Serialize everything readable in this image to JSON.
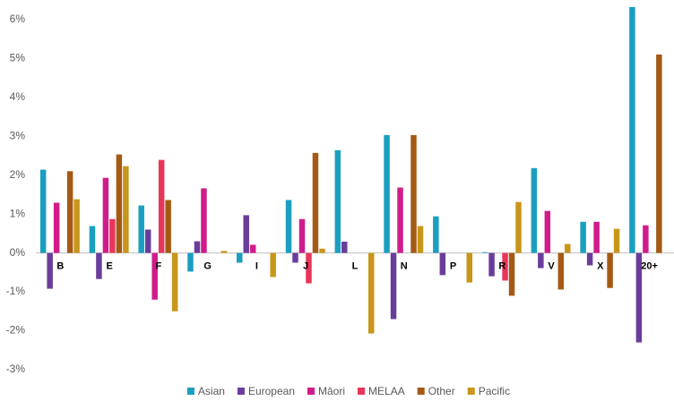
{
  "chart_data": {
    "type": "bar",
    "categories": [
      "B",
      "E",
      "F",
      "G",
      "I",
      "J",
      "L",
      "N",
      "P",
      "R",
      "V",
      "X",
      "20+"
    ],
    "series": [
      {
        "name": "Asian",
        "color": "#1a9fc0",
        "values": [
          2.14,
          0.69,
          1.22,
          -0.48,
          -0.25,
          1.36,
          2.64,
          3.03,
          0.94,
          0.02,
          2.18,
          0.8,
          6.32
        ]
      },
      {
        "name": "European",
        "color": "#6a3d9a",
        "values": [
          -0.92,
          -0.67,
          0.6,
          0.3,
          0.97,
          -0.25,
          0.29,
          -1.7,
          -0.57,
          -0.6,
          -0.39,
          -0.32,
          -2.3
        ]
      },
      {
        "name": "Māori",
        "color": "#d01c8b",
        "values": [
          1.29,
          1.93,
          -1.2,
          1.66,
          0.21,
          0.87,
          0,
          1.68,
          0,
          0,
          1.08,
          0.8,
          0.71
        ]
      },
      {
        "name": "MELAA",
        "color": "#e8365a",
        "values": [
          0,
          0.87,
          2.39,
          0,
          0,
          -0.78,
          0,
          0,
          0,
          -0.71,
          0,
          0,
          0
        ]
      },
      {
        "name": "Other",
        "color": "#a45a14",
        "values": [
          2.1,
          2.53,
          1.36,
          0,
          0,
          2.57,
          0,
          3.03,
          0,
          -1.1,
          -0.94,
          -0.9,
          5.1
        ]
      },
      {
        "name": "Pacific",
        "color": "#c8961a",
        "values": [
          1.38,
          2.23,
          -1.5,
          0.05,
          -0.62,
          0.11,
          -2.07,
          0.69,
          -0.76,
          1.31,
          0.23,
          0.62,
          0
        ]
      }
    ],
    "ylim": [
      -3,
      6.5
    ],
    "yticks": [
      {
        "value": -3,
        "label": "-3%"
      },
      {
        "value": -2,
        "label": "-2%"
      },
      {
        "value": -1,
        "label": "-1%"
      },
      {
        "value": 0,
        "label": "0%"
      },
      {
        "value": 1,
        "label": "1%"
      },
      {
        "value": 2,
        "label": "2%"
      },
      {
        "value": 3,
        "label": "3%"
      },
      {
        "value": 4,
        "label": "4%"
      },
      {
        "value": 5,
        "label": "5%"
      },
      {
        "value": 6,
        "label": "6%"
      }
    ],
    "grid": false,
    "legend": "bottom"
  }
}
